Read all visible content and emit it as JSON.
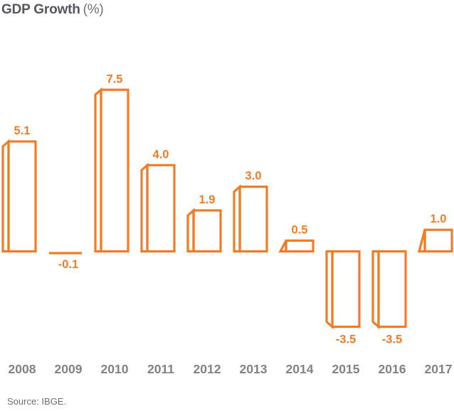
{
  "title": {
    "main": "GDP Growth",
    "unit": "(%)"
  },
  "source": "Source: IBGE.",
  "colors": {
    "accent": "#F07D26",
    "title_text": "#55575B",
    "unit_text": "#707275",
    "axis_text": "#808285",
    "source_text": "#6D6E71",
    "background": "#FFFFFF"
  },
  "chart_data": {
    "type": "bar",
    "style": "3d-outline-open-bars",
    "title": "GDP Growth (%)",
    "categories": [
      "2008",
      "2009",
      "2010",
      "2011",
      "2012",
      "2013",
      "2014",
      "2015",
      "2016",
      "2017"
    ],
    "values": [
      5.1,
      -0.1,
      7.5,
      4.0,
      1.9,
      3.0,
      0.5,
      -3.5,
      -3.5,
      1.0
    ],
    "value_labels": [
      "5.1",
      "-0.1",
      "7.5",
      "4.0",
      "1.9",
      "3.0",
      "0.5",
      "-3.5",
      "-3.5",
      "1.0"
    ],
    "xlabel": "",
    "ylabel": "GDP Growth (%)",
    "ylim": [
      -3.5,
      7.5
    ],
    "grid": false,
    "axes_shown": false,
    "legend": "none",
    "data_labels": "all bars, outside end",
    "source": "Source: IBGE."
  }
}
